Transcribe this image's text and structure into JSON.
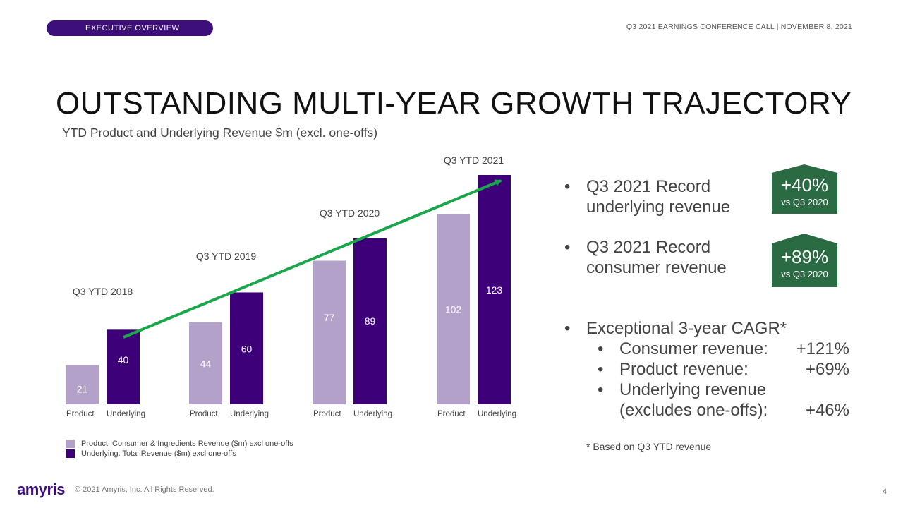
{
  "header": {
    "section": "EXECUTIVE OVERVIEW",
    "event": "Q3 2021 EARNINGS CONFERENCE CALL | NOVEMBER 8, 2021"
  },
  "title": "OUTSTANDING MULTI-YEAR GROWTH TRAJECTORY",
  "subtitle": "YTD Product and Underlying Revenue $m (excl. one-offs)",
  "chart_data": {
    "type": "bar",
    "title": "YTD Product and Underlying Revenue $m (excl. one-offs)",
    "groups": [
      "Q3 YTD 2018",
      "Q3 YTD 2019",
      "Q3 YTD 2020",
      "Q3 YTD 2021"
    ],
    "bar_labels": [
      "Product",
      "Underlying"
    ],
    "series": [
      {
        "name": "Product",
        "legend": "Product: Consumer & Ingredients Revenue ($m) excl one-offs",
        "color": "#b3a1c9",
        "values": [
          21,
          44,
          77,
          102
        ]
      },
      {
        "name": "Underlying",
        "legend": "Underlying: Total Revenue ($m) excl one-offs",
        "color": "#3d0079",
        "values": [
          40,
          60,
          89,
          123
        ]
      }
    ],
    "ylim": [
      0,
      123
    ],
    "trend_arrow_color": "#1aa64a",
    "xlabel": "",
    "ylabel": ""
  },
  "bullets": {
    "b1": {
      "line1": "Q3 2021 Record",
      "line2": "underlying revenue"
    },
    "b2": {
      "line1": "Q3 2021 Record",
      "line2": "consumer revenue"
    },
    "b3": {
      "heading": "Exceptional 3-year CAGR*",
      "items": [
        {
          "label": "Consumer revenue:",
          "value": "+121%"
        },
        {
          "label": "Product revenue:",
          "value": "+69%"
        },
        {
          "label": "Underlying revenue",
          "value": ""
        },
        {
          "label": "(excludes one-offs):",
          "value": "+46%"
        }
      ]
    }
  },
  "badges": [
    {
      "big": "+40%",
      "small": "vs Q3 2020"
    },
    {
      "big": "+89%",
      "small": "vs Q3 2020"
    }
  ],
  "badge_color": "#2a6b43",
  "bullet_symbol": "•",
  "footnote": "* Based on Q3 YTD revenue",
  "footer": {
    "logo": "amyris",
    "copyright": "© 2021 Amyris, Inc. All Rights Reserved.",
    "page": "4"
  }
}
